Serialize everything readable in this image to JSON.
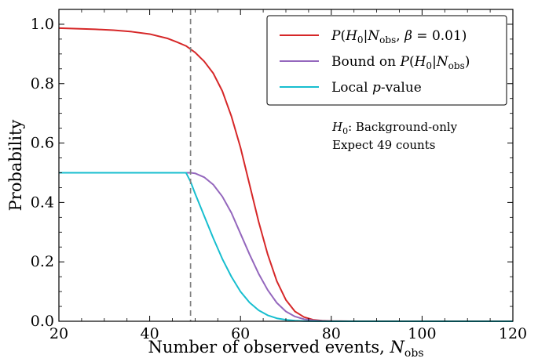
{
  "chart_data": {
    "type": "line",
    "xlabel": "Number of observed events, ",
    "xlabel_symbol": "N",
    "xlabel_sub": "obs",
    "ylabel": "Probability",
    "xlim": [
      20,
      120
    ],
    "ylim": [
      0.0,
      1.05
    ],
    "x_ticks": [
      20,
      40,
      60,
      80,
      100,
      120
    ],
    "y_ticks": [
      0.0,
      0.2,
      0.4,
      0.6,
      0.8,
      1.0
    ],
    "x_tick_labels": [
      "20",
      "40",
      "60",
      "80",
      "100",
      "120"
    ],
    "y_tick_labels": [
      "0.0",
      "0.2",
      "0.4",
      "0.6",
      "0.8",
      "1.0"
    ],
    "grid": false,
    "legend_position": "top-right",
    "vline": {
      "x": 49,
      "style": "dashed",
      "color": "#808080"
    },
    "annotation": {
      "line1_symbol": "H",
      "line1_sub": "0",
      "line1_text": ": Background-only",
      "line2_text": "Expect 49 counts"
    },
    "series": [
      {
        "name": "P(H0|Nobs, β = 0.01)",
        "legend_parts": {
          "p": "P",
          "open": "(",
          "h": "H",
          "h_sub": "0",
          "bar": "|",
          "n": "N",
          "n_sub": "obs",
          "rest": ", ",
          "beta": "β",
          "eq": " = 0.01)"
        },
        "color": "#d62728",
        "x": [
          20,
          24,
          28,
          32,
          36,
          40,
          44,
          46,
          48,
          50,
          52,
          54,
          56,
          58,
          60,
          62,
          64,
          66,
          68,
          70,
          72,
          74,
          76,
          78,
          80,
          84,
          90,
          100,
          110,
          120
        ],
        "y": [
          0.987,
          0.985,
          0.983,
          0.98,
          0.975,
          0.967,
          0.952,
          0.94,
          0.927,
          0.905,
          0.875,
          0.835,
          0.775,
          0.69,
          0.585,
          0.46,
          0.335,
          0.225,
          0.135,
          0.072,
          0.033,
          0.014,
          0.005,
          0.002,
          0.0006,
          0.0001,
          0.0,
          0.0,
          0.0,
          0.0
        ]
      },
      {
        "name": "Bound on P(H0|Nobs)",
        "legend_parts": {
          "prefix": "Bound on ",
          "p": "P",
          "open": "(",
          "h": "H",
          "h_sub": "0",
          "bar": "|",
          "n": "N",
          "n_sub": "obs",
          "close": ")"
        },
        "color": "#9467bd",
        "x": [
          20,
          30,
          40,
          48,
          49,
          50,
          52,
          54,
          56,
          58,
          60,
          62,
          64,
          66,
          68,
          70,
          72,
          74,
          76,
          78,
          80,
          85,
          90,
          100,
          110,
          120
        ],
        "y": [
          0.5,
          0.5,
          0.5,
          0.5,
          0.5,
          0.498,
          0.485,
          0.46,
          0.42,
          0.365,
          0.295,
          0.225,
          0.16,
          0.105,
          0.062,
          0.033,
          0.016,
          0.007,
          0.003,
          0.001,
          0.0004,
          0.0,
          0.0,
          0.0,
          0.0,
          0.0
        ]
      },
      {
        "name": "Local p-value",
        "legend_parts": {
          "prefix": "Local ",
          "p": "p",
          "rest": "-value"
        },
        "color": "#17becf",
        "x": [
          20,
          30,
          40,
          48,
          49,
          50,
          52,
          54,
          56,
          58,
          60,
          62,
          64,
          66,
          68,
          70,
          72,
          74,
          76,
          80,
          85,
          90,
          100,
          110,
          120
        ],
        "y": [
          0.5,
          0.5,
          0.5,
          0.5,
          0.47,
          0.43,
          0.355,
          0.28,
          0.21,
          0.15,
          0.1,
          0.063,
          0.037,
          0.02,
          0.01,
          0.005,
          0.002,
          0.0008,
          0.0003,
          0.0,
          0.0,
          0.0,
          0.0,
          0.0,
          0.0
        ]
      }
    ]
  }
}
